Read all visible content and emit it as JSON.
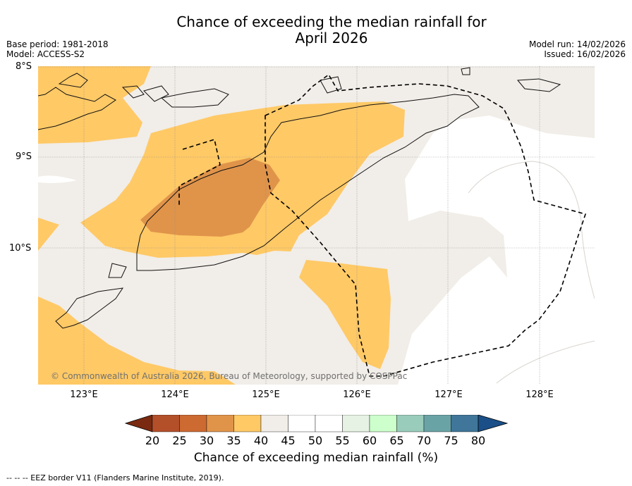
{
  "title_line1": "Chance of exceeding the median rainfall for",
  "title_line2": "April 2026",
  "meta": {
    "base_period": "Base period: 1981-2018",
    "model": "Model: ACCESS-S2",
    "model_run": "Model run: 14/02/2026",
    "issued": "Issued: 16/02/2026"
  },
  "axes": {
    "lat_labels": [
      "8°S",
      "9°S",
      "10°S"
    ],
    "lon_labels": [
      "123°E",
      "124°E",
      "125°E",
      "126°E",
      "127°E",
      "128°E"
    ]
  },
  "copyright": "© Commonwealth of Australia 2026, Bureau of Meteorology, supported by COSPPac",
  "colorbar": {
    "label": "Chance of exceeding median rainfall (%)",
    "ticks": [
      "20",
      "25",
      "30",
      "35",
      "40",
      "45",
      "50",
      "55",
      "60",
      "65",
      "70",
      "75",
      "80"
    ],
    "colors": [
      "#7a2a10",
      "#b3502a",
      "#cc6a32",
      "#e0944a",
      "#ffc966",
      "#f1ede8",
      "#ffffff",
      "#ffffff",
      "#e6f2e4",
      "#ccffcc",
      "#99ccbb",
      "#6aa3a6",
      "#3f7699",
      "#1a4f88"
    ]
  },
  "footnote": "--  --  -- EEZ border V11 (Flanders Marine Institute, 2019)."
}
